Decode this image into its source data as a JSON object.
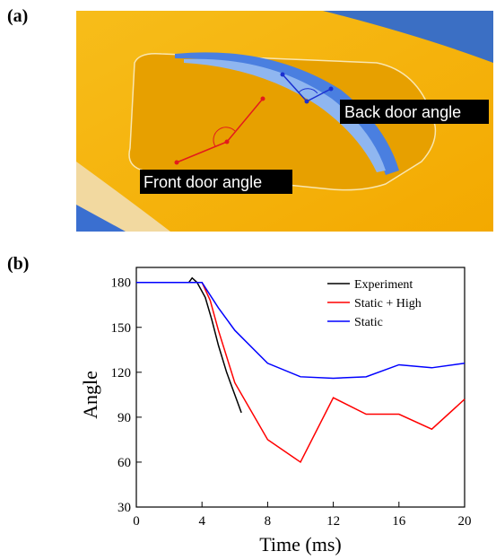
{
  "image_panel": {
    "label": "(a)",
    "annotations": [
      "Back door angle",
      "Front door angle"
    ]
  },
  "chart_data": {
    "type": "line",
    "panel_label": "(b)",
    "x_label": "Time (ms)",
    "y_label": "Angle",
    "xlim": [
      0,
      20
    ],
    "ylim": [
      30,
      190
    ],
    "xticks": [
      0,
      4,
      8,
      12,
      16,
      20
    ],
    "yticks": [
      30,
      60,
      90,
      120,
      150,
      180
    ],
    "legend": "upper right",
    "series": [
      {
        "name": "Experiment",
        "color": "#000000",
        "x": [
          0,
          3.2,
          3.4,
          3.7,
          4.2,
          4.6,
          5,
          5.5,
          6,
          6.4
        ],
        "values": [
          180,
          180,
          183,
          180,
          170,
          155,
          138,
          120,
          105,
          93
        ]
      },
      {
        "name": "Static + High",
        "color": "#ff0000",
        "x": [
          0,
          4,
          4.5,
          5,
          6,
          8,
          10,
          12,
          14,
          16,
          18,
          20
        ],
        "values": [
          180,
          180,
          168,
          148,
          113,
          75,
          60,
          103,
          92,
          92,
          82,
          102
        ]
      },
      {
        "name": "Static",
        "color": "#0000ff",
        "x": [
          0,
          4,
          5,
          6,
          8,
          10,
          12,
          14,
          16,
          18,
          20
        ],
        "values": [
          180,
          180,
          163,
          148,
          126,
          117,
          116,
          117,
          125,
          123,
          126
        ]
      }
    ]
  }
}
